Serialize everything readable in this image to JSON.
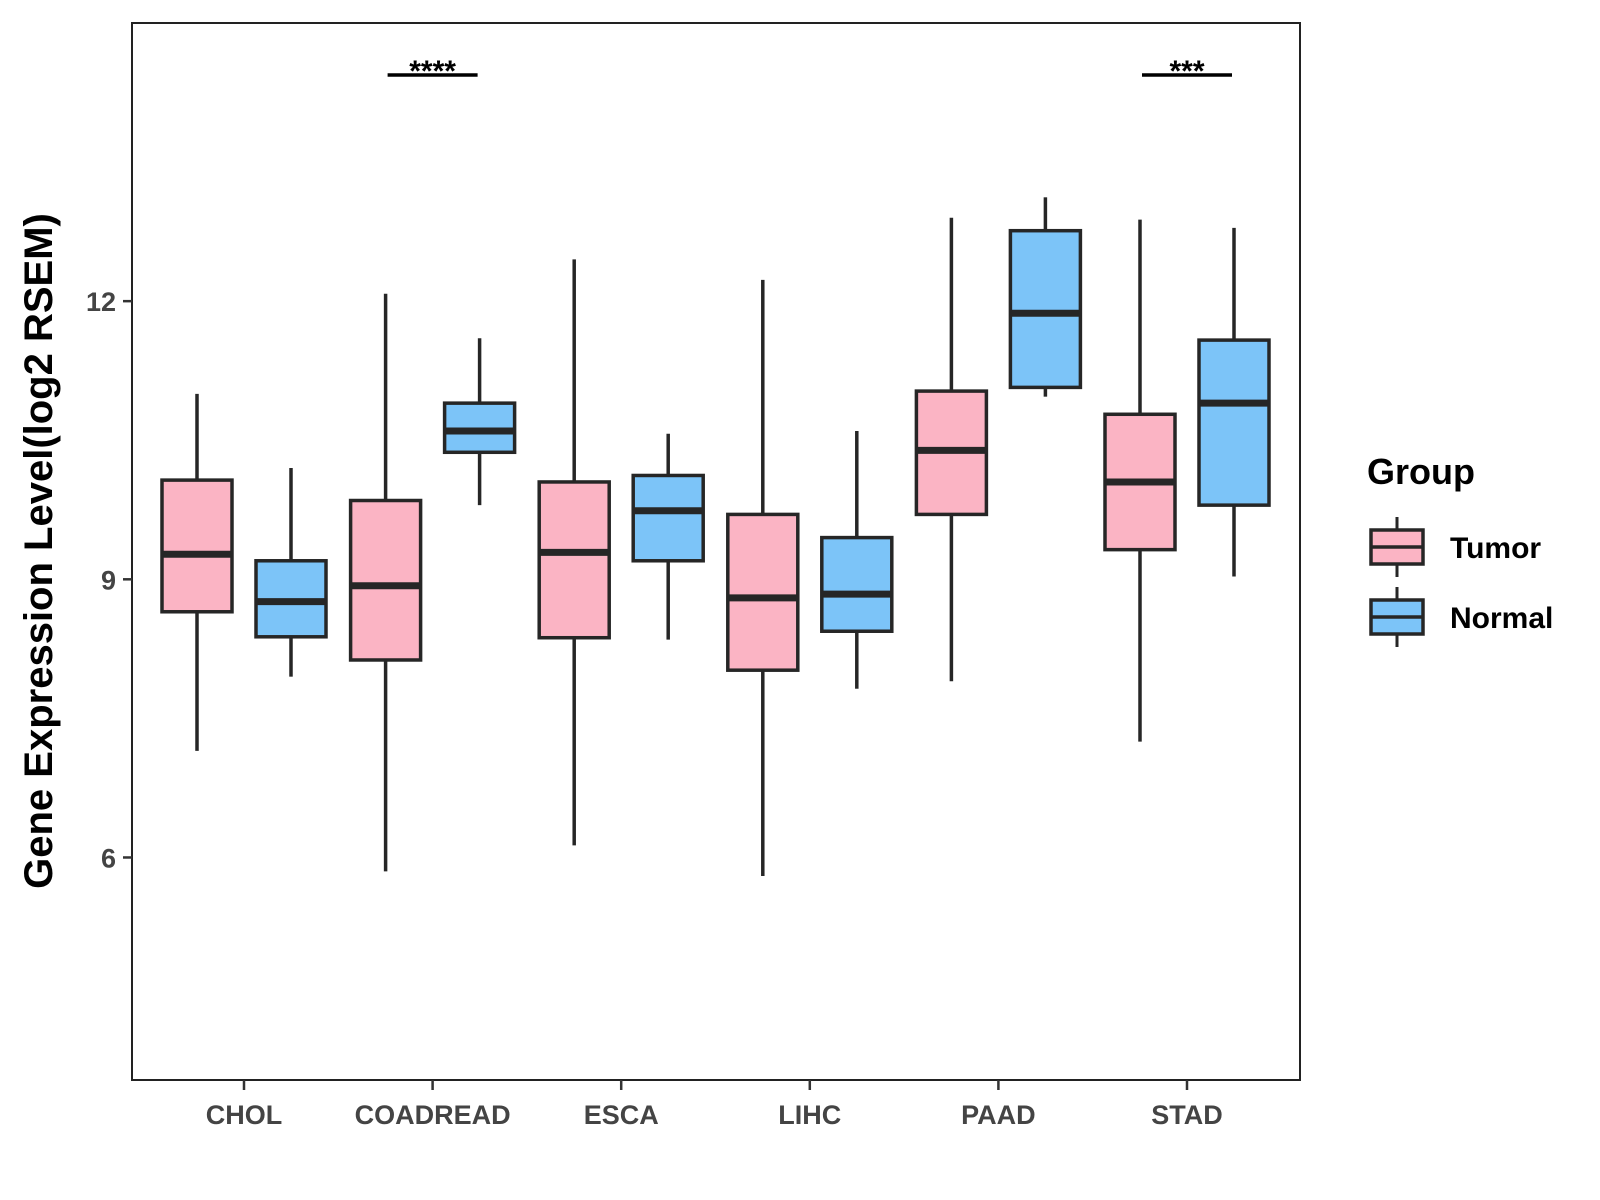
{
  "chart_data": {
    "type": "boxplot",
    "title": "",
    "xlabel": "",
    "ylabel": "Gene Expression Level(log2 RSEM)",
    "ylim": [
      3.6,
      15.0
    ],
    "yticks": [
      6,
      9,
      12
    ],
    "categories": [
      "CHOL",
      "COADREAD",
      "ESCA",
      "LIHC",
      "PAAD",
      "STAD"
    ],
    "legend": {
      "title": "Group",
      "position": "right",
      "entries": [
        {
          "name": "Tumor",
          "color": "#FBB4C4"
        },
        {
          "name": "Normal",
          "color": "#7CC4F8"
        }
      ]
    },
    "series": [
      {
        "name": "Tumor",
        "color": "#FBB4C4",
        "boxes": [
          {
            "category": "CHOL",
            "min": 7.15,
            "q1": 8.65,
            "median": 9.27,
            "q3": 10.07,
            "max": 11.0
          },
          {
            "category": "COADREAD",
            "min": 5.85,
            "q1": 8.13,
            "median": 8.93,
            "q3": 9.85,
            "max": 12.08
          },
          {
            "category": "ESCA",
            "min": 6.13,
            "q1": 8.37,
            "median": 9.29,
            "q3": 10.05,
            "max": 12.45
          },
          {
            "category": "LIHC",
            "min": 5.8,
            "q1": 8.02,
            "median": 8.8,
            "q3": 9.7,
            "max": 12.23
          },
          {
            "category": "PAAD",
            "min": 7.9,
            "q1": 9.7,
            "median": 10.39,
            "q3": 11.03,
            "max": 12.9
          },
          {
            "category": "STAD",
            "min": 7.25,
            "q1": 9.32,
            "median": 10.05,
            "q3": 10.78,
            "max": 12.88
          }
        ]
      },
      {
        "name": "Normal",
        "color": "#7CC4F8",
        "boxes": [
          {
            "category": "CHOL",
            "min": 7.95,
            "q1": 8.38,
            "median": 8.76,
            "q3": 9.2,
            "max": 10.2
          },
          {
            "category": "COADREAD",
            "min": 9.8,
            "q1": 10.37,
            "median": 10.6,
            "q3": 10.9,
            "max": 11.6
          },
          {
            "category": "ESCA",
            "min": 8.35,
            "q1": 9.2,
            "median": 9.74,
            "q3": 10.12,
            "max": 10.57
          },
          {
            "category": "LIHC",
            "min": 7.82,
            "q1": 8.44,
            "median": 8.84,
            "q3": 9.45,
            "max": 10.6
          },
          {
            "category": "PAAD",
            "min": 10.97,
            "q1": 11.07,
            "median": 11.87,
            "q3": 12.76,
            "max": 13.12
          },
          {
            "category": "STAD",
            "min": 9.03,
            "q1": 9.8,
            "median": 10.9,
            "q3": 11.58,
            "max": 12.79
          }
        ]
      }
    ],
    "annotations": [
      {
        "category": "COADREAD",
        "label": "****"
      },
      {
        "category": "STAD",
        "label": "***"
      }
    ]
  }
}
